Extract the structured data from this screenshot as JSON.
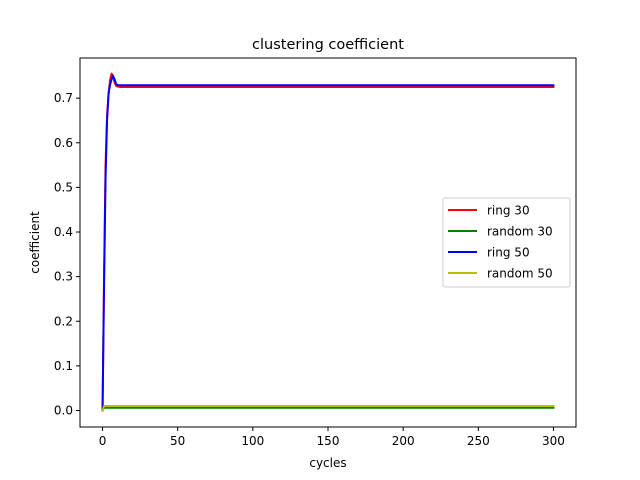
{
  "chart_data": {
    "type": "line",
    "title": "clustering coefficient",
    "xlabel": "cycles",
    "ylabel": "coefficient",
    "xlim": [
      -15,
      315
    ],
    "ylim": [
      -0.037,
      0.79
    ],
    "xticks": [
      0,
      50,
      100,
      150,
      200,
      250,
      300
    ],
    "yticks": [
      0.0,
      0.1,
      0.2,
      0.3,
      0.4,
      0.5,
      0.6,
      0.7
    ],
    "ytick_labels": [
      "0.0",
      "0.1",
      "0.2",
      "0.3",
      "0.4",
      "0.5",
      "0.6",
      "0.7"
    ],
    "grid": false,
    "legend_position": "center-right",
    "series": [
      {
        "name": "ring 30",
        "color": "#ff0000",
        "x": [
          0,
          1,
          2,
          3,
          4,
          5,
          6,
          7,
          8,
          9,
          10,
          12,
          15,
          20,
          300
        ],
        "y": [
          0.0,
          0.3,
          0.55,
          0.66,
          0.71,
          0.74,
          0.755,
          0.75,
          0.735,
          0.728,
          0.726,
          0.725,
          0.725,
          0.725,
          0.725
        ]
      },
      {
        "name": "random 30",
        "color": "#008000",
        "x": [
          0,
          1,
          2,
          300
        ],
        "y": [
          0.0,
          0.006,
          0.006,
          0.006
        ]
      },
      {
        "name": "ring 50",
        "color": "#0000ff",
        "x": [
          0,
          1,
          2,
          3,
          4,
          5,
          6,
          7,
          8,
          9,
          10,
          12,
          15,
          20,
          300
        ],
        "y": [
          0.0,
          0.28,
          0.52,
          0.65,
          0.71,
          0.73,
          0.742,
          0.75,
          0.742,
          0.732,
          0.729,
          0.729,
          0.729,
          0.729,
          0.729
        ]
      },
      {
        "name": "random 50",
        "color": "#bfbf00",
        "x": [
          0,
          1,
          2,
          300
        ],
        "y": [
          0.0,
          0.01,
          0.01,
          0.01
        ]
      }
    ]
  }
}
